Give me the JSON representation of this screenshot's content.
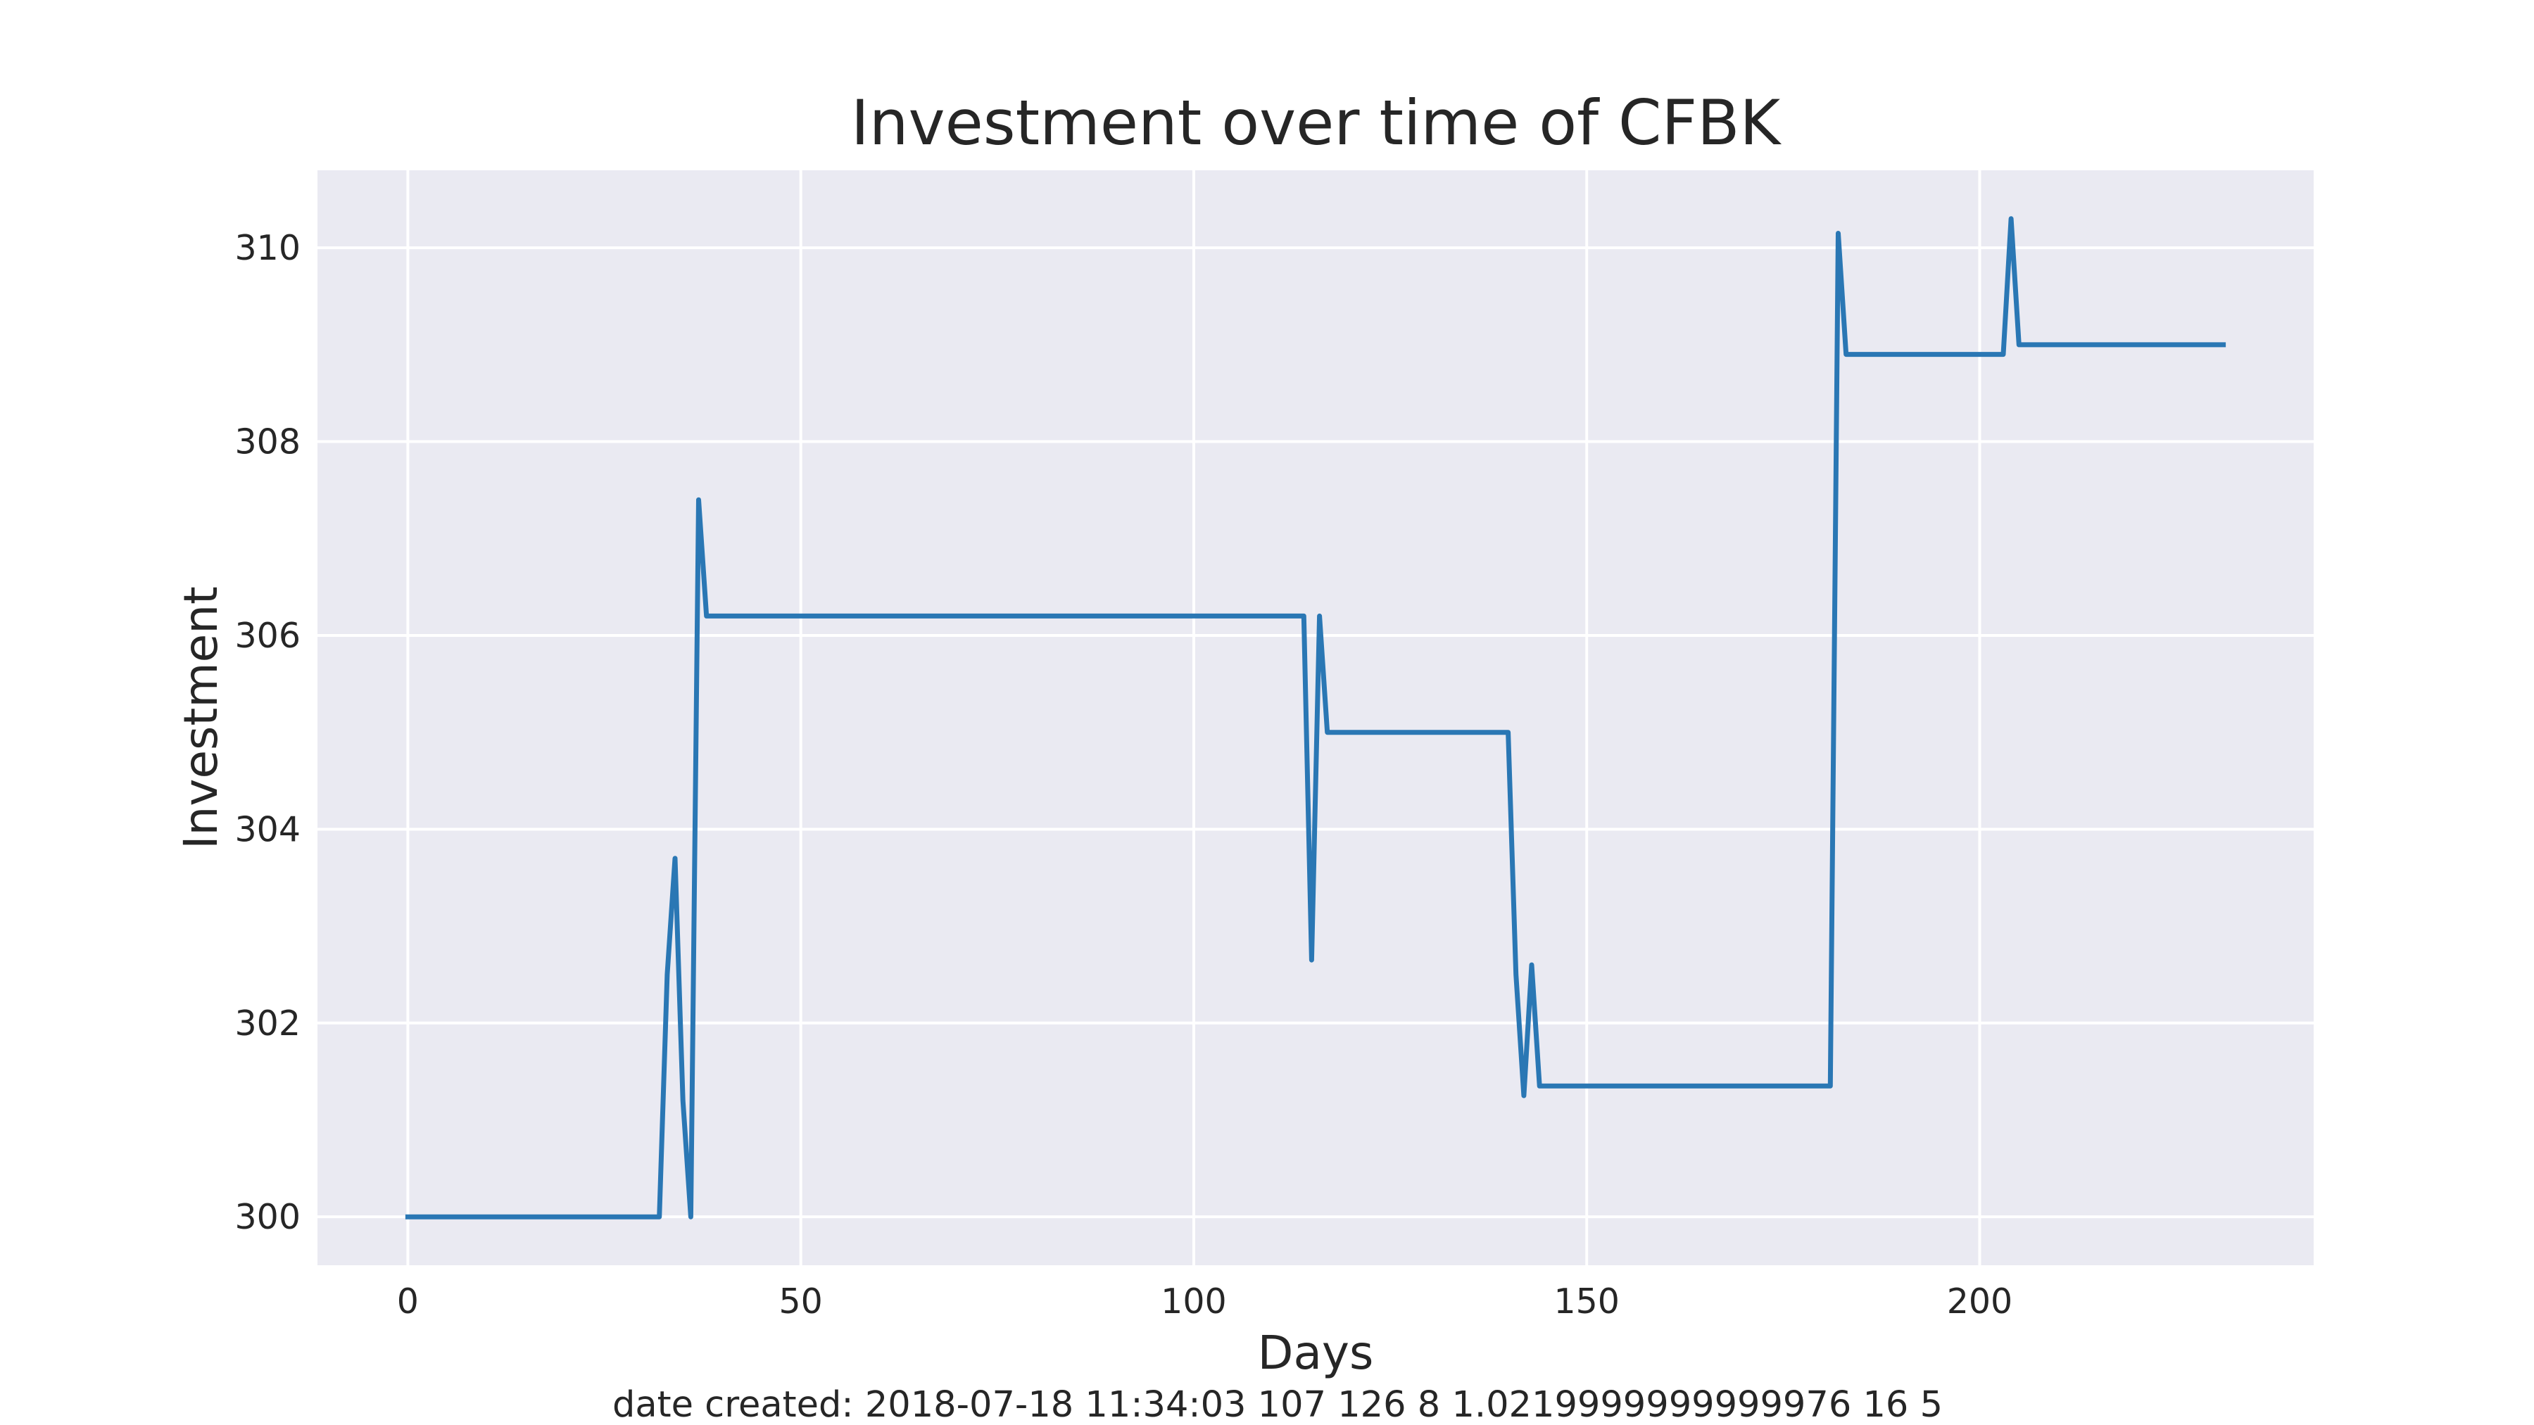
{
  "chart_data": {
    "type": "line",
    "title": "Investment over time of CFBK",
    "xlabel": "Days",
    "ylabel": "Investment",
    "xlim": [
      -11.5,
      242.5
    ],
    "ylim": [
      299.5,
      310.8
    ],
    "xticks": [
      0,
      50,
      100,
      150,
      200
    ],
    "yticks": [
      300,
      302,
      304,
      306,
      308,
      310
    ],
    "grid": true,
    "style": "seaborn-darkgrid",
    "colors": {
      "background": "#EAEAF2",
      "grid": "#FFFFFF",
      "line": "#2A77B4",
      "text": "#262626"
    },
    "series": [
      {
        "x": [
          0,
          32,
          33,
          34,
          35,
          36,
          37,
          38,
          114,
          115,
          116,
          117,
          140,
          141,
          142,
          143,
          144,
          181,
          182,
          183,
          203,
          204,
          205,
          231
        ],
        "y": [
          300.0,
          300.0,
          302.5,
          303.7,
          301.2,
          300.0,
          307.4,
          306.2,
          306.2,
          302.65,
          306.2,
          305.0,
          305.0,
          302.5,
          301.25,
          302.6,
          301.35,
          301.35,
          310.15,
          308.9,
          308.9,
          310.3,
          309.0,
          309.0
        ]
      }
    ]
  },
  "footer": {
    "text": "date created: 2018-07-18 11:34:03 107 126 8 1.0219999999999976 16 5"
  }
}
